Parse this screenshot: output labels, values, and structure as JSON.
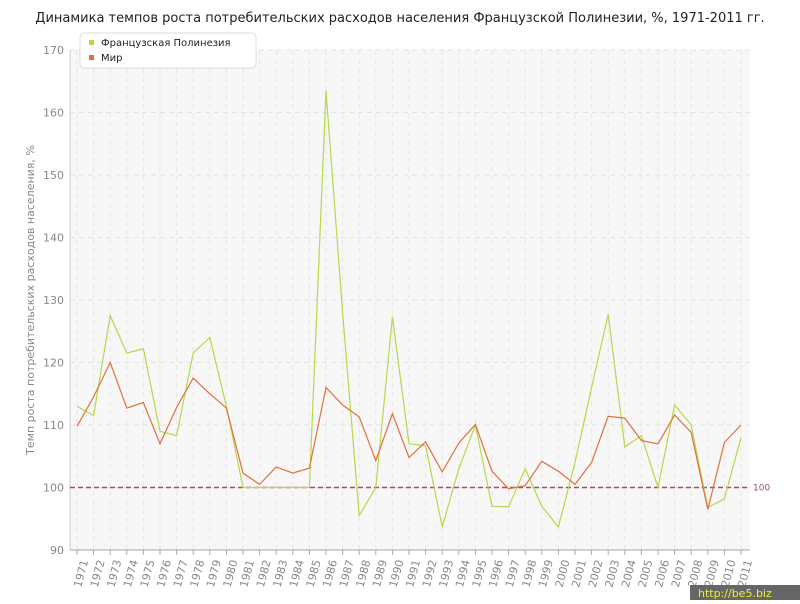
{
  "chart_data": {
    "type": "line",
    "title": "Динамика темпов роста потребительских расходов населения Французской Полинезии, %, 1971-2011 гг.",
    "y_label": "Темп роста потребительских расходов населения, %",
    "categories": [
      "1971",
      "1972",
      "1973",
      "1974",
      "1975",
      "1976",
      "1977",
      "1978",
      "1979",
      "1980",
      "1981",
      "1982",
      "1983",
      "1984",
      "1985",
      "1986",
      "1987",
      "1988",
      "1989",
      "1990",
      "1991",
      "1992",
      "1993",
      "1994",
      "1995",
      "1996",
      "1997",
      "1998",
      "1999",
      "2000",
      "2001",
      "2002",
      "2003",
      "2004",
      "2005",
      "2006",
      "2007",
      "2008",
      "2009",
      "2010",
      "2011"
    ],
    "series": [
      {
        "name": "Французская Полинезия",
        "color": "#b5d94a",
        "values": [
          113,
          111.5,
          127.5,
          121.5,
          122.2,
          109,
          108.3,
          121.5,
          124,
          113,
          100,
          100,
          100,
          100,
          100,
          163.5,
          128,
          95.5,
          100,
          127.3,
          107,
          106.7,
          93.7,
          103,
          110,
          97,
          96.9,
          103,
          97,
          93.7,
          104,
          116,
          127.7,
          106.5,
          108.3,
          100,
          113.2,
          110,
          96.8,
          98.2,
          108
        ]
      },
      {
        "name": "Мир",
        "color": "#e07040",
        "values": [
          109.8,
          114.5,
          120,
          112.7,
          113.6,
          107,
          112.8,
          117.5,
          115,
          112.7,
          102.3,
          100.5,
          103.3,
          102.3,
          103.1,
          116,
          113.2,
          111.3,
          104.3,
          111.8,
          104.8,
          107.3,
          102.5,
          107.1,
          110.1,
          102.6,
          99.8,
          100.3,
          104.2,
          102.6,
          100.5,
          104,
          111.4,
          111.1,
          107.5,
          107,
          111.6,
          108.8,
          96.5,
          107.2,
          110
        ]
      }
    ],
    "ylim": [
      90,
      170
    ],
    "yticks": [
      90,
      100,
      110,
      120,
      130,
      140,
      150,
      160,
      170
    ],
    "grid": true,
    "reference_line": 100,
    "reference_color": "#a05060",
    "watermark": "http://be5.biz"
  }
}
